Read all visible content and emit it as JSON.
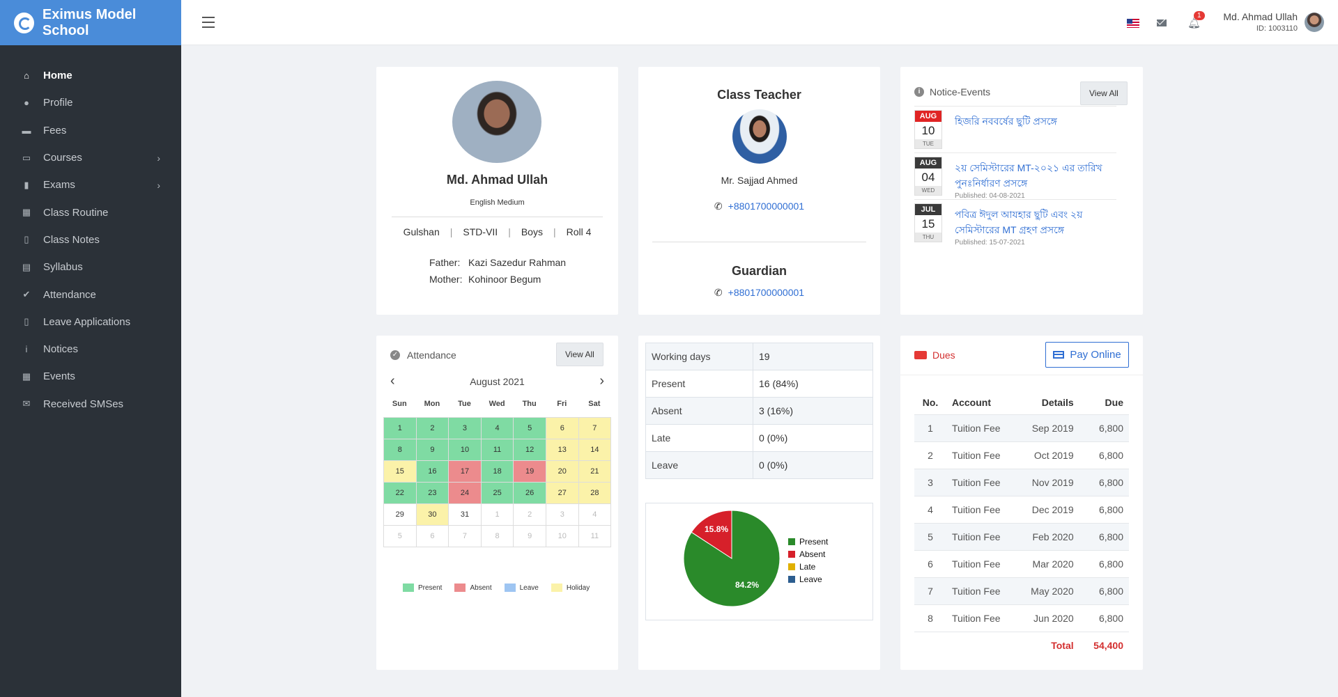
{
  "brand": {
    "name": "Eximus Model School"
  },
  "sidebar": {
    "items": [
      {
        "label": "Home",
        "icon": "home-icon",
        "glyph": "⌂"
      },
      {
        "label": "Profile",
        "icon": "user-circle-icon",
        "glyph": "●"
      },
      {
        "label": "Fees",
        "icon": "money-icon",
        "glyph": "▬"
      },
      {
        "label": "Courses",
        "icon": "chalkboard-icon",
        "glyph": "▭"
      },
      {
        "label": "Exams",
        "icon": "clipboard-icon",
        "glyph": "▮"
      },
      {
        "label": "Class Routine",
        "icon": "table-icon",
        "glyph": "▦"
      },
      {
        "label": "Class Notes",
        "icon": "file-icon",
        "glyph": "▯"
      },
      {
        "label": "Syllabus",
        "icon": "book-icon",
        "glyph": "▤"
      },
      {
        "label": "Attendance",
        "icon": "check-circle-icon",
        "glyph": "✔"
      },
      {
        "label": "Leave Applications",
        "icon": "file-export-icon",
        "glyph": "▯"
      },
      {
        "label": "Notices",
        "icon": "info-circle-icon",
        "glyph": "i"
      },
      {
        "label": "Events",
        "icon": "calendar-icon",
        "glyph": "▦"
      },
      {
        "label": "Received SMSes",
        "icon": "envelope-open-icon",
        "glyph": "✉"
      }
    ]
  },
  "topbar": {
    "user_name": "Md. Ahmad Ullah",
    "user_id": "ID: 1003110",
    "notification_count": "1"
  },
  "profile": {
    "name": "Md. Ahmad Ullah",
    "medium": "English Medium",
    "campus": "Gulshan",
    "class": "STD-VII",
    "section": "Boys",
    "roll": "Roll 4",
    "father_label": "Father:",
    "father": "Kazi Sazedur Rahman",
    "mother_label": "Mother:",
    "mother": "Kohinoor Begum"
  },
  "class_teacher": {
    "title": "Class Teacher",
    "name": "Mr. Sajjad Ahmed",
    "phone": "+8801700000001"
  },
  "guardian": {
    "title": "Guardian",
    "phone": "+8801700000001"
  },
  "notice_events": {
    "title": "Notice-Events",
    "view_all": "View All",
    "items": [
      {
        "month": "AUG",
        "day": "10",
        "weekday": "TUE",
        "title": "হিজরি নববর্ষের ছুটি প্রসঙ্গে",
        "published": "",
        "month_color": "#e02424"
      },
      {
        "month": "AUG",
        "day": "04",
        "weekday": "WED",
        "title": "২য় সেমিস্টারের MT-২০২১ এর তারিখ পুনঃনির্ধারণ প্রসঙ্গে",
        "published": "Published: 04-08-2021",
        "month_color": "#3a3a3a"
      },
      {
        "month": "JUL",
        "day": "15",
        "weekday": "THU",
        "title": "পবিত্র ঈদুল আযহার ছুটি এবং ২য় সেমিস্টারের MT গ্রহণ প্রসঙ্গে",
        "published": "Published: 15-07-2021",
        "month_color": "#3a3a3a"
      }
    ]
  },
  "attendance_calendar": {
    "title": "Attendance",
    "view_all": "View All",
    "month": "August 2021",
    "weekdays": [
      "Sun",
      "Mon",
      "Tue",
      "Wed",
      "Thu",
      "Fri",
      "Sat"
    ],
    "days": [
      {
        "d": "1",
        "s": "present"
      },
      {
        "d": "2",
        "s": "present"
      },
      {
        "d": "3",
        "s": "present"
      },
      {
        "d": "4",
        "s": "present"
      },
      {
        "d": "5",
        "s": "present"
      },
      {
        "d": "6",
        "s": "holiday"
      },
      {
        "d": "7",
        "s": "holiday"
      },
      {
        "d": "8",
        "s": "present"
      },
      {
        "d": "9",
        "s": "present"
      },
      {
        "d": "10",
        "s": "present"
      },
      {
        "d": "11",
        "s": "present"
      },
      {
        "d": "12",
        "s": "present"
      },
      {
        "d": "13",
        "s": "holiday"
      },
      {
        "d": "14",
        "s": "holiday"
      },
      {
        "d": "15",
        "s": "holiday"
      },
      {
        "d": "16",
        "s": "present"
      },
      {
        "d": "17",
        "s": "absent"
      },
      {
        "d": "18",
        "s": "present"
      },
      {
        "d": "19",
        "s": "absent"
      },
      {
        "d": "20",
        "s": "holiday"
      },
      {
        "d": "21",
        "s": "holiday"
      },
      {
        "d": "22",
        "s": "present"
      },
      {
        "d": "23",
        "s": "present"
      },
      {
        "d": "24",
        "s": "absent"
      },
      {
        "d": "25",
        "s": "present"
      },
      {
        "d": "26",
        "s": "present"
      },
      {
        "d": "27",
        "s": "holiday"
      },
      {
        "d": "28",
        "s": "holiday"
      },
      {
        "d": "29",
        "s": ""
      },
      {
        "d": "30",
        "s": "holiday"
      },
      {
        "d": "31",
        "s": ""
      },
      {
        "d": "1",
        "s": "other"
      },
      {
        "d": "2",
        "s": "other"
      },
      {
        "d": "3",
        "s": "other"
      },
      {
        "d": "4",
        "s": "other"
      },
      {
        "d": "5",
        "s": "other"
      },
      {
        "d": "6",
        "s": "other"
      },
      {
        "d": "7",
        "s": "other"
      },
      {
        "d": "8",
        "s": "other"
      },
      {
        "d": "9",
        "s": "other"
      },
      {
        "d": "10",
        "s": "other"
      },
      {
        "d": "11",
        "s": "other"
      }
    ],
    "legend": [
      {
        "label": "Present",
        "color": "#7fdba3"
      },
      {
        "label": "Absent",
        "color": "#ec8b8d"
      },
      {
        "label": "Leave",
        "color": "#9ec5f2"
      },
      {
        "label": "Holiday",
        "color": "#fbf2a9"
      }
    ]
  },
  "attendance_stats": {
    "rows": [
      {
        "label": "Working days",
        "value": "19"
      },
      {
        "label": "Present",
        "value": "16 (84%)"
      },
      {
        "label": "Absent",
        "value": "3 (16%)"
      },
      {
        "label": "Late",
        "value": "0 (0%)"
      },
      {
        "label": "Leave",
        "value": "0 (0%)"
      }
    ]
  },
  "chart_data": {
    "type": "pie",
    "labels": [
      "Present",
      "Absent",
      "Late",
      "Leave"
    ],
    "values": [
      84.2,
      15.8,
      0,
      0
    ],
    "value_labels": [
      "84.2%",
      "15.8%",
      "",
      ""
    ],
    "colors": [
      "#2a8a2a",
      "#d6202a",
      "#e0b000",
      "#2c5d8f"
    ],
    "legend": "right"
  },
  "dues": {
    "title": "Dues",
    "pay_online": "Pay Online",
    "headers": {
      "no": "No.",
      "account": "Account",
      "details": "Details",
      "due": "Due"
    },
    "rows": [
      {
        "no": "1",
        "account": "Tuition Fee",
        "details": "Sep 2019",
        "due": "6,800"
      },
      {
        "no": "2",
        "account": "Tuition Fee",
        "details": "Oct 2019",
        "due": "6,800"
      },
      {
        "no": "3",
        "account": "Tuition Fee",
        "details": "Nov 2019",
        "due": "6,800"
      },
      {
        "no": "4",
        "account": "Tuition Fee",
        "details": "Dec 2019",
        "due": "6,800"
      },
      {
        "no": "5",
        "account": "Tuition Fee",
        "details": "Feb 2020",
        "due": "6,800"
      },
      {
        "no": "6",
        "account": "Tuition Fee",
        "details": "Mar 2020",
        "due": "6,800"
      },
      {
        "no": "7",
        "account": "Tuition Fee",
        "details": "May 2020",
        "due": "6,800"
      },
      {
        "no": "8",
        "account": "Tuition Fee",
        "details": "Jun 2020",
        "due": "6,800"
      }
    ],
    "total_label": "Total",
    "total": "54,400"
  }
}
